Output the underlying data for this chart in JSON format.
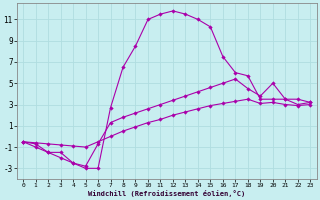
{
  "xlabel": "Windchill (Refroidissement éolien,°C)",
  "bg_color": "#c8eef0",
  "grid_color": "#b0dde0",
  "line_color": "#aa00aa",
  "xlim": [
    -0.5,
    23.5
  ],
  "ylim": [
    -4.0,
    12.5
  ],
  "xticks": [
    0,
    1,
    2,
    3,
    4,
    5,
    6,
    7,
    8,
    9,
    10,
    11,
    12,
    13,
    14,
    15,
    16,
    17,
    18,
    19,
    20,
    21,
    22,
    23
  ],
  "yticks": [
    -3,
    -1,
    1,
    3,
    5,
    7,
    9,
    11
  ],
  "line1_x": [
    0,
    1,
    2,
    3,
    4,
    5,
    6,
    7,
    8,
    9,
    10,
    11,
    12,
    13,
    14,
    15,
    16,
    17,
    18,
    19,
    20,
    21,
    22,
    23
  ],
  "line1_y": [
    -0.5,
    -1.0,
    -1.5,
    -1.5,
    -2.5,
    -3.0,
    -3.0,
    2.7,
    6.5,
    8.5,
    11.0,
    11.5,
    11.8,
    11.5,
    11.0,
    10.3,
    7.5,
    6.0,
    5.7,
    3.5,
    3.5,
    3.5,
    3.0,
    3.2
  ],
  "line2_x": [
    0,
    1,
    2,
    3,
    4,
    5,
    6,
    7,
    8,
    9,
    10,
    11,
    12,
    13,
    14,
    15,
    16,
    17,
    18,
    19,
    20,
    21,
    22,
    23
  ],
  "line2_y": [
    -0.5,
    -0.7,
    -1.5,
    -2.0,
    -2.5,
    -2.8,
    -0.7,
    1.3,
    1.8,
    2.2,
    2.6,
    3.0,
    3.4,
    3.8,
    4.2,
    4.6,
    5.0,
    5.4,
    4.5,
    3.8,
    5.0,
    3.5,
    3.5,
    3.2
  ],
  "line3_x": [
    0,
    1,
    2,
    3,
    4,
    5,
    6,
    7,
    8,
    9,
    10,
    11,
    12,
    13,
    14,
    15,
    16,
    17,
    18,
    19,
    20,
    21,
    22,
    23
  ],
  "line3_y": [
    -0.5,
    -0.6,
    -0.7,
    -0.8,
    -0.9,
    -1.0,
    -0.5,
    0.0,
    0.5,
    0.9,
    1.3,
    1.6,
    2.0,
    2.3,
    2.6,
    2.9,
    3.1,
    3.3,
    3.5,
    3.1,
    3.2,
    3.0,
    2.9,
    3.0
  ]
}
